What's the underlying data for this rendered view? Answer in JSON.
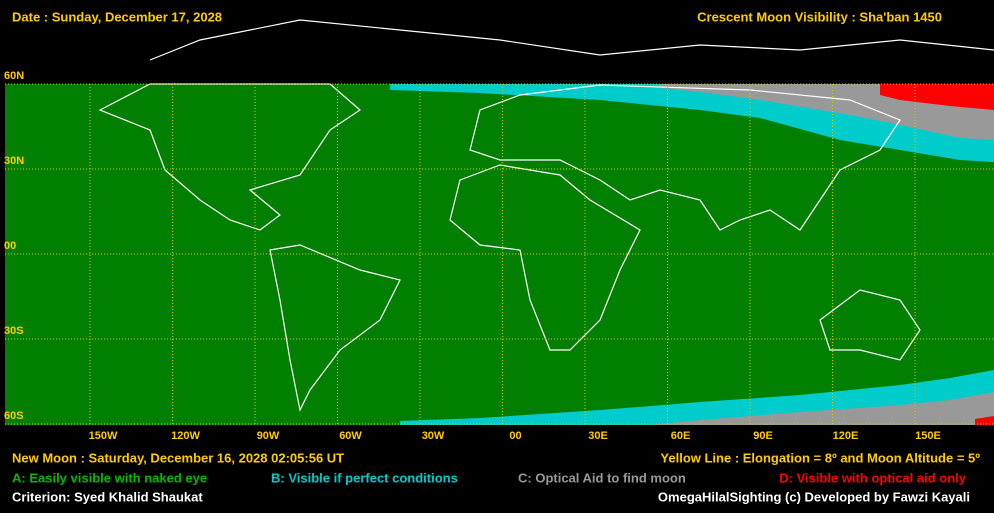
{
  "header": {
    "date": "Date : Sunday, December 17, 2028",
    "title": "Crescent Moon Visibility : Sha'ban  1450"
  },
  "map": {
    "lat_labels": [
      "60N",
      "30N",
      "00",
      "30S",
      "60S"
    ],
    "lon_labels": [
      "150W",
      "120W",
      "90W",
      "60W",
      "30W",
      "00",
      "30E",
      "60E",
      "90E",
      "120E",
      "150E"
    ]
  },
  "footer": {
    "new_moon": "New Moon : Saturday, December 16, 2028  02:05:56  UT",
    "yellow_line": "Yellow Line : Elongation = 8º  and Moon Altitude = 5º",
    "legend": [
      "A: Easily visible with naked eye",
      "B: Visible if perfect conditions",
      "C: Optical Aid to find moon",
      "D: Visible with optical aid only"
    ],
    "criterion": "Criterion: Syed Khalid Shaukat",
    "credit": "OmegaHilalSighting  (c)  Developed by Fawzi Kayali"
  }
}
